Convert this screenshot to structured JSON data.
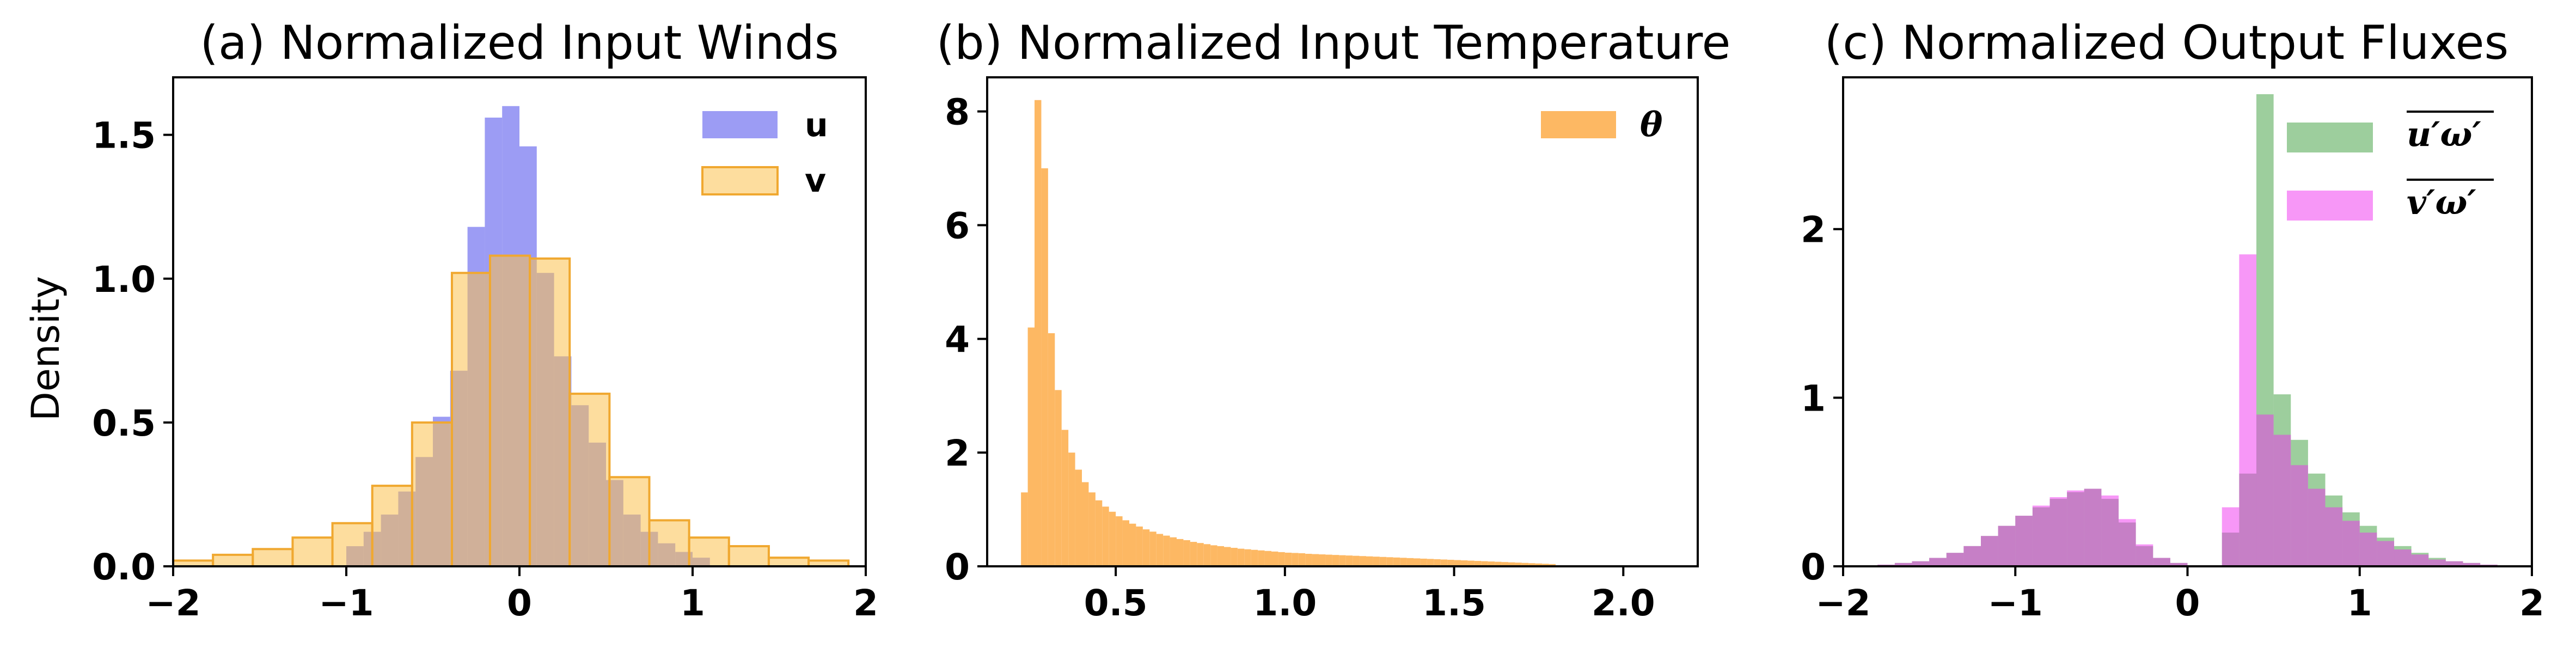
{
  "chart_data": [
    {
      "type": "histogram",
      "title": "(a) Normalized Input Winds",
      "xlabel": "",
      "ylabel": "Density",
      "xlim": [
        -2,
        2
      ],
      "ylim": [
        0,
        1.7
      ],
      "xticks": [
        -2,
        -1,
        0,
        1,
        2
      ],
      "xtick_labels": [
        "−2",
        "−1",
        "0",
        "1",
        "2"
      ],
      "yticks": [
        0,
        0.5,
        1,
        1.5
      ],
      "ytick_labels": [
        "0.0",
        "0.5",
        "1.0",
        "1.5"
      ],
      "legend_position": "top-right",
      "series": [
        {
          "name": "u",
          "color": "#7b7bf0",
          "opacity": 0.75,
          "bin_edges": [
            -1.0,
            -0.9,
            -0.8,
            -0.7,
            -0.6,
            -0.5,
            -0.4,
            -0.3,
            -0.2,
            -0.1,
            0.0,
            0.1,
            0.2,
            0.3,
            0.4,
            0.5,
            0.6,
            0.7,
            0.8,
            0.9,
            1.0,
            1.1
          ],
          "values": [
            0.07,
            0.12,
            0.18,
            0.26,
            0.38,
            0.52,
            0.68,
            1.18,
            1.56,
            1.6,
            1.46,
            1.02,
            0.73,
            0.56,
            0.43,
            0.3,
            0.18,
            0.12,
            0.08,
            0.05,
            0.03
          ]
        },
        {
          "name": "v",
          "color": "#fcc14e",
          "opacity": 0.55,
          "bin_edges": [
            -2.0,
            -1.77,
            -1.54,
            -1.31,
            -1.08,
            -0.85,
            -0.62,
            -0.39,
            -0.17,
            0.06,
            0.29,
            0.52,
            0.75,
            0.98,
            1.21,
            1.44,
            1.67,
            1.9
          ],
          "values": [
            0.02,
            0.04,
            0.06,
            0.1,
            0.15,
            0.28,
            0.5,
            1.02,
            1.08,
            1.07,
            0.6,
            0.31,
            0.16,
            0.1,
            0.07,
            0.03,
            0.02
          ]
        }
      ]
    },
    {
      "type": "histogram",
      "title": "(b) Normalized Input Temperature",
      "xlabel": "",
      "ylabel": "",
      "xlim": [
        0.12,
        2.22
      ],
      "ylim": [
        0,
        8.6
      ],
      "xticks": [
        0.5,
        1.0,
        1.5,
        2.0
      ],
      "xtick_labels": [
        "0.5",
        "1.0",
        "1.5",
        "2.0"
      ],
      "yticks": [
        0,
        2,
        4,
        6,
        8
      ],
      "ytick_labels": [
        "0",
        "2",
        "4",
        "6",
        "8"
      ],
      "legend_position": "top-right",
      "series": [
        {
          "name": "θ",
          "color": "#fdb863",
          "opacity": 1.0,
          "bin_start": 0.22,
          "bin_width": 0.02,
          "values": [
            1.3,
            4.2,
            8.2,
            7.0,
            4.1,
            3.1,
            2.4,
            2.0,
            1.7,
            1.48,
            1.3,
            1.16,
            1.05,
            0.96,
            0.88,
            0.81,
            0.75,
            0.7,
            0.65,
            0.61,
            0.57,
            0.54,
            0.51,
            0.48,
            0.46,
            0.43,
            0.41,
            0.39,
            0.37,
            0.355,
            0.34,
            0.325,
            0.31,
            0.3,
            0.29,
            0.28,
            0.27,
            0.26,
            0.25,
            0.24,
            0.235,
            0.23,
            0.22,
            0.215,
            0.21,
            0.205,
            0.2,
            0.195,
            0.19,
            0.185,
            0.18,
            0.175,
            0.17,
            0.165,
            0.16,
            0.155,
            0.15,
            0.145,
            0.14,
            0.135,
            0.13,
            0.125,
            0.12,
            0.115,
            0.11,
            0.105,
            0.1,
            0.095,
            0.09,
            0.085,
            0.08,
            0.075,
            0.07,
            0.065,
            0.06,
            0.055,
            0.05,
            0.045,
            0.04
          ]
        }
      ]
    },
    {
      "type": "histogram",
      "title": "(c) Normalized Output Fluxes",
      "xlabel": "",
      "ylabel": "",
      "xlim": [
        -2,
        2
      ],
      "ylim": [
        0,
        2.9
      ],
      "xticks": [
        -2,
        -1,
        0,
        1,
        2
      ],
      "xtick_labels": [
        "−2",
        "−1",
        "0",
        "1",
        "2"
      ],
      "yticks": [
        0,
        1,
        2
      ],
      "ytick_labels": [
        "0",
        "1",
        "2"
      ],
      "legend_position": "top-right",
      "series": [
        {
          "name": "u′ω′",
          "color": "#4ca64c",
          "opacity": 0.55,
          "bin_start": -1.8,
          "bin_width": 0.1,
          "values": [
            0.01,
            0.02,
            0.03,
            0.05,
            0.08,
            0.12,
            0.18,
            0.24,
            0.3,
            0.35,
            0.4,
            0.44,
            0.46,
            0.4,
            0.26,
            0.12,
            0.05,
            0.02,
            0.0,
            0.0,
            0.2,
            0.55,
            2.8,
            1.02,
            0.75,
            0.55,
            0.42,
            0.32,
            0.24,
            0.17,
            0.12,
            0.08,
            0.05,
            0.03,
            0.02,
            0.01
          ]
        },
        {
          "name": "v′ω′",
          "color": "#f030f0",
          "opacity": 0.5,
          "bin_start": -1.8,
          "bin_width": 0.1,
          "values": [
            0.01,
            0.02,
            0.03,
            0.05,
            0.08,
            0.12,
            0.18,
            0.24,
            0.3,
            0.36,
            0.41,
            0.45,
            0.46,
            0.42,
            0.28,
            0.13,
            0.05,
            0.02,
            0.0,
            0.0,
            0.35,
            1.85,
            0.9,
            0.78,
            0.6,
            0.46,
            0.35,
            0.27,
            0.2,
            0.15,
            0.1,
            0.07,
            0.04,
            0.03,
            0.02,
            0.01
          ]
        }
      ]
    }
  ]
}
